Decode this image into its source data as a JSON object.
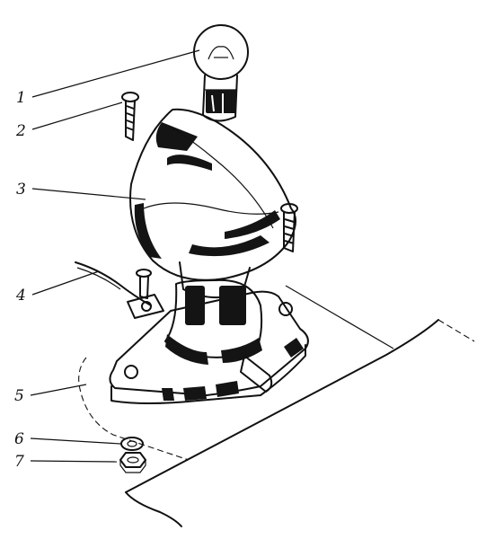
{
  "callouts": [
    {
      "id": "1",
      "label": "1"
    },
    {
      "id": "2",
      "label": "2"
    },
    {
      "id": "3",
      "label": "3"
    },
    {
      "id": "4",
      "label": "4"
    },
    {
      "id": "5",
      "label": "5"
    },
    {
      "id": "6",
      "label": "6"
    },
    {
      "id": "7",
      "label": "7"
    }
  ],
  "colors": {
    "ink": "#111111",
    "paper": "#ffffff"
  }
}
